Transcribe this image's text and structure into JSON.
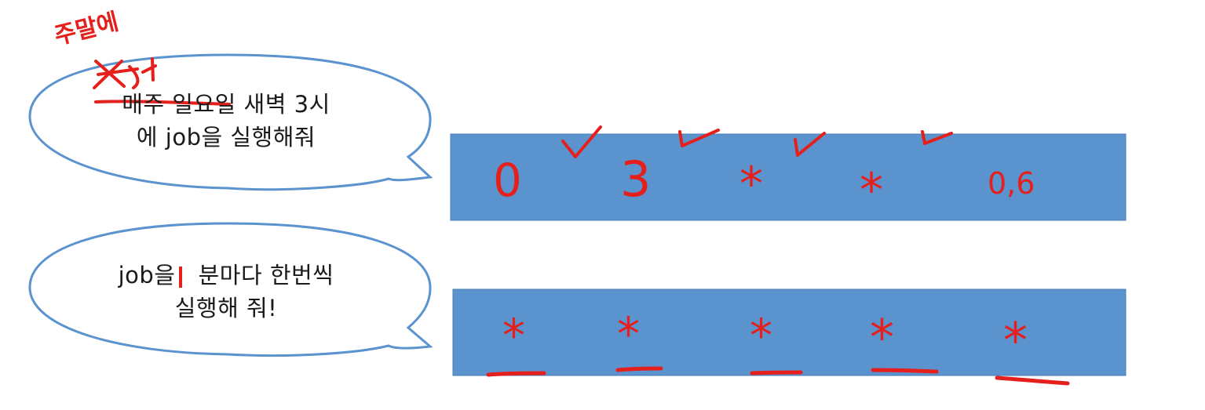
{
  "bubble1": {
    "line1": "매주 일요일 새벽 3시",
    "line2": "에 job을 실행해줘",
    "annotation_top": "주말에",
    "annotation_strike": "매주"
  },
  "bubble2": {
    "line1_before": "job을",
    "line1_after": "분마다 한번씩",
    "line2": "실행해 줘!"
  },
  "cron1": {
    "fields": [
      "0",
      "3",
      "*",
      "*",
      "0,6"
    ]
  },
  "cron2": {
    "fields": [
      "*",
      "*",
      "*",
      "*",
      "*"
    ]
  },
  "colors": {
    "box_fill": "#5b93cf",
    "box_stroke": "#4a7db3",
    "bubble_stroke": "#5b93cf",
    "ink": "#e5201c"
  }
}
